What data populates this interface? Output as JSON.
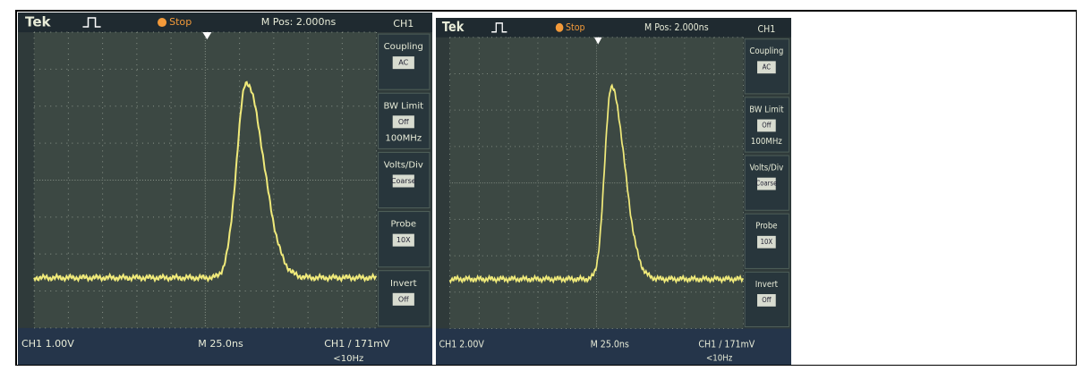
{
  "screens": [
    {
      "brand": "Tek",
      "status": "Stop",
      "position": "M Pos: 2.000ns",
      "channel": "CH1",
      "menu": [
        {
          "label": "Coupling",
          "value": "AC"
        },
        {
          "label": "BW Limit",
          "value": "Off",
          "extra": "100MHz"
        },
        {
          "label": "Volts/Div",
          "value": "Coarse"
        },
        {
          "label": "Probe",
          "value": "10X"
        },
        {
          "label": "Invert",
          "value": "Off"
        }
      ],
      "scale": "CH1 1.00V",
      "timebase": "M 25.0ns",
      "trigger": "CH1 / 171mV",
      "frequency": "<10Hz"
    },
    {
      "brand": "Tek",
      "status": "Stop",
      "position": "M Pos: 2.000ns",
      "channel": "CH1",
      "menu": [
        {
          "label": "Coupling",
          "value": "AC"
        },
        {
          "label": "BW Limit",
          "value": "Off",
          "extra": "100MHz"
        },
        {
          "label": "Volts/Div",
          "value": "Coarse"
        },
        {
          "label": "Probe",
          "value": "10X"
        },
        {
          "label": "Invert",
          "value": "Off"
        }
      ],
      "scale": "CH1 2.00V",
      "timebase": "M 25.0ns",
      "trigger": "CH1 / 171mV",
      "frequency": "<10Hz"
    }
  ]
}
